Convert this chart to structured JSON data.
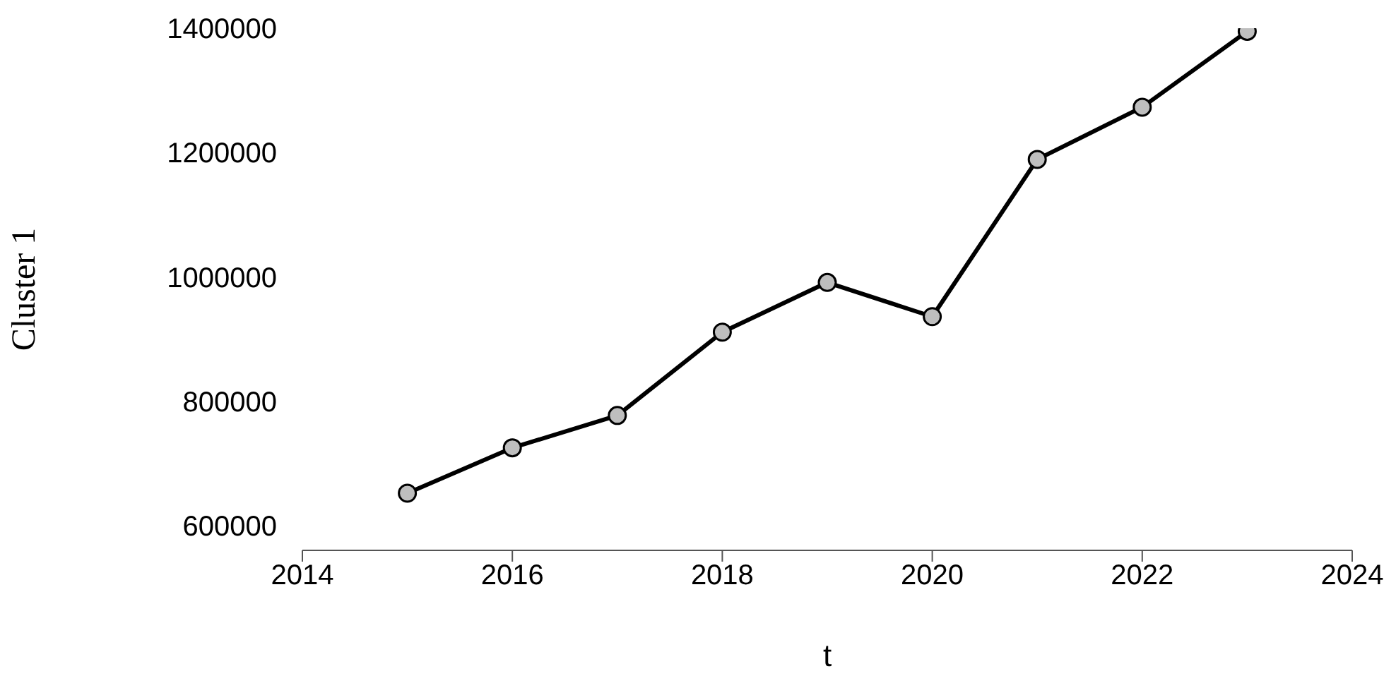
{
  "chart_data": {
    "type": "line",
    "xlabel": "t",
    "ylabel": "Cluster 1",
    "x": [
      2015,
      2016,
      2017,
      2018,
      2019,
      2020,
      2021,
      2022,
      2023
    ],
    "series": [
      {
        "color": "#000000",
        "values": [
          652000,
          725000,
          777000,
          911000,
          991000,
          936000,
          1189000,
          1273000,
          1395000
        ]
      }
    ],
    "xlim": [
      2014,
      2024
    ],
    "xticks": [
      2014,
      2016,
      2018,
      2020,
      2022,
      2024
    ],
    "ylim": [
      560000,
      1400000
    ],
    "yticks": [
      600000,
      800000,
      1000000,
      1200000,
      1400000
    ],
    "marker": "circle",
    "line_style": "solid",
    "grid": false,
    "legend": false
  }
}
